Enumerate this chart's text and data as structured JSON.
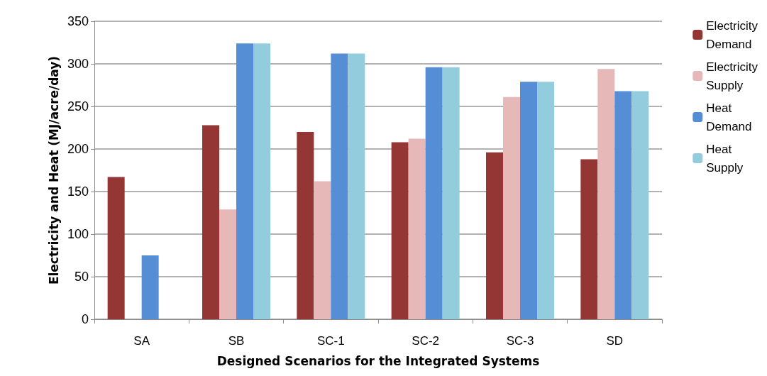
{
  "chart_data": {
    "type": "bar",
    "xlabel": "Designed Scenarios for the Integrated Systems",
    "ylabel": "Electricity and Heat (MJ/acre/day)",
    "categories": [
      "SA",
      "SB",
      "SC-1",
      "SC-2",
      "SC-3",
      "SD"
    ],
    "series": [
      {
        "name": "Electricity Demand",
        "color": "#943634",
        "values": [
          167,
          228,
          220,
          208,
          196,
          188
        ]
      },
      {
        "name": "Electricity Supply",
        "color": "#e6b9b8",
        "values": [
          null,
          129,
          162,
          212,
          261,
          294
        ]
      },
      {
        "name": "Heat Demand",
        "color": "#558ed5",
        "values": [
          75,
          324,
          312,
          296,
          279,
          268
        ]
      },
      {
        "name": "Heat Supply",
        "color": "#93cddd",
        "values": [
          null,
          324,
          312,
          296,
          279,
          268
        ]
      }
    ],
    "ylim": [
      0,
      350
    ],
    "yticks": [
      0,
      50,
      100,
      150,
      200,
      250,
      300,
      350
    ],
    "grid": "y",
    "legend": "right"
  }
}
